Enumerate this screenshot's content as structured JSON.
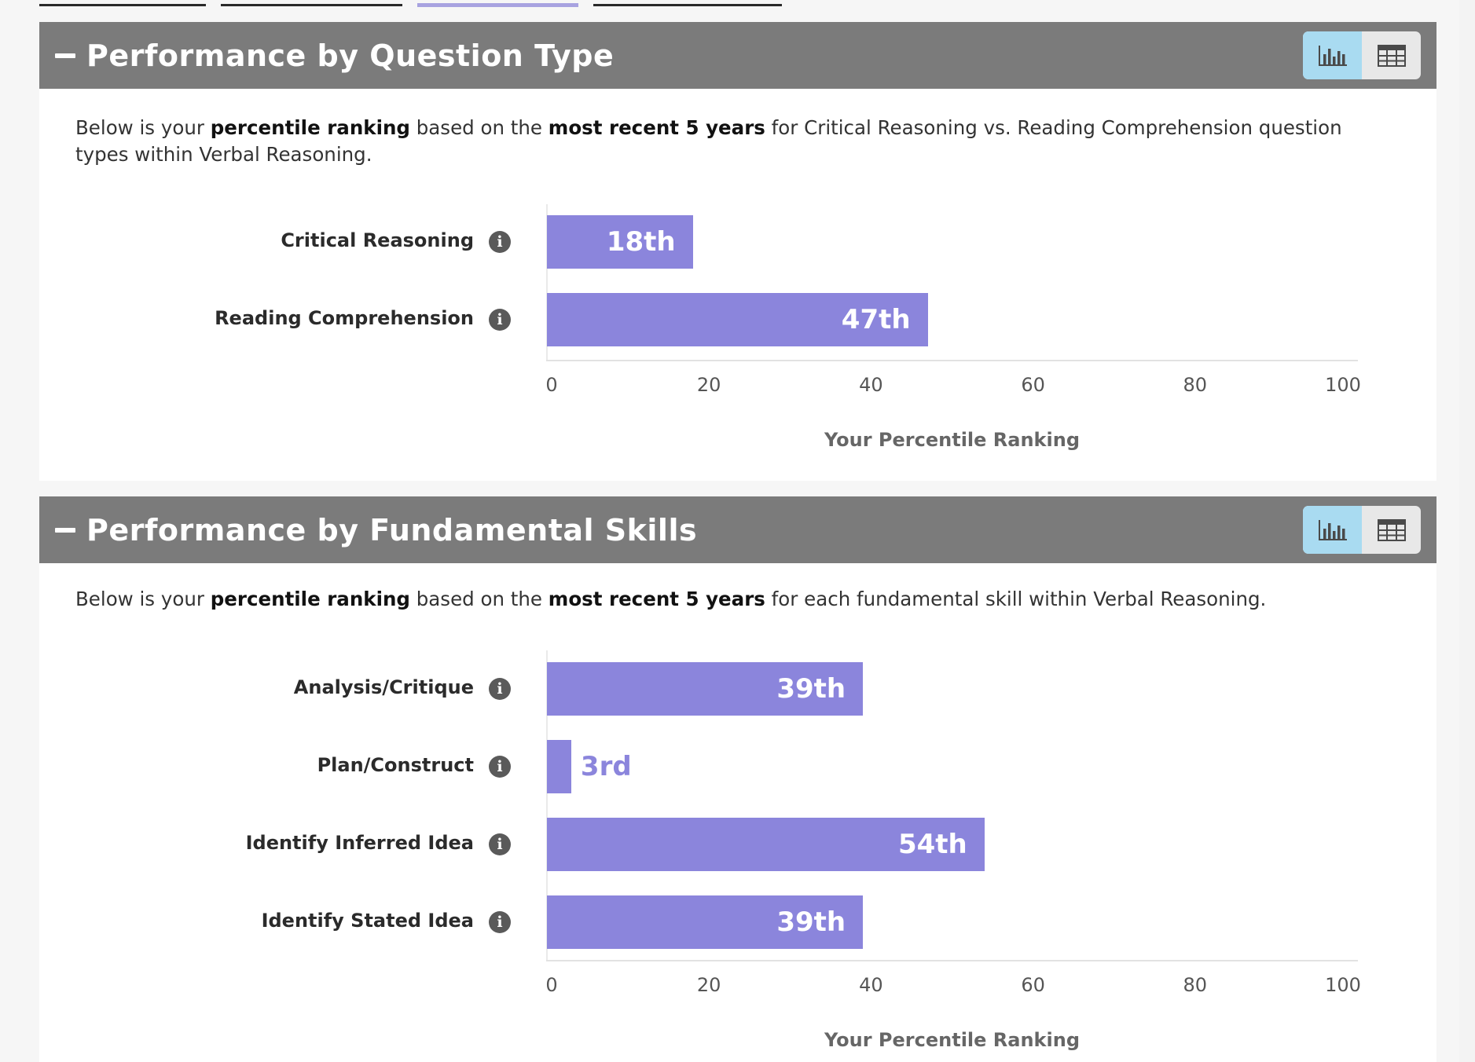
{
  "colors": {
    "header_bg": "#7b7b7b",
    "bar": "#8b85dc",
    "toggle_active": "#a9dbf1",
    "tab_active": "#a8a3e0"
  },
  "tabs": [
    {
      "active": false
    },
    {
      "active": false
    },
    {
      "active": true
    },
    {
      "active": false
    }
  ],
  "panels": [
    {
      "title": "Performance by Question Type",
      "description": [
        {
          "text": "Below is your ",
          "bold": false
        },
        {
          "text": "percentile ranking",
          "bold": true
        },
        {
          "text": " based on the ",
          "bold": false
        },
        {
          "text": "most recent 5 years",
          "bold": true
        },
        {
          "text": " for Critical Reasoning vs. Reading Comprehension question types within Verbal Reasoning.",
          "bold": false
        }
      ],
      "view_toggle": {
        "chart_icon": "bar-chart-icon",
        "table_icon": "table-icon",
        "active": "chart"
      },
      "chart_data": {
        "type": "bar",
        "orientation": "horizontal",
        "categories": [
          "Critical Reasoning",
          "Reading Comprehension"
        ],
        "values": [
          18,
          47
        ],
        "value_labels": [
          "18th",
          "47th"
        ],
        "xlim": [
          0,
          100
        ],
        "xticks": [
          "0",
          "20",
          "40",
          "60",
          "80",
          "100"
        ],
        "xlabel": "Your Percentile Ranking"
      }
    },
    {
      "title": "Performance by Fundamental Skills",
      "description": [
        {
          "text": "Below is your ",
          "bold": false
        },
        {
          "text": "percentile ranking",
          "bold": true
        },
        {
          "text": " based on the ",
          "bold": false
        },
        {
          "text": "most recent 5 years",
          "bold": true
        },
        {
          "text": " for each fundamental skill within Verbal Reasoning.",
          "bold": false
        }
      ],
      "view_toggle": {
        "chart_icon": "bar-chart-icon",
        "table_icon": "table-icon",
        "active": "chart"
      },
      "chart_data": {
        "type": "bar",
        "orientation": "horizontal",
        "categories": [
          "Analysis/Critique",
          "Plan/Construct",
          "Identify Inferred Idea",
          "Identify Stated Idea"
        ],
        "values": [
          39,
          3,
          54,
          39
        ],
        "value_labels": [
          "39th",
          "3rd",
          "54th",
          "39th"
        ],
        "xlim": [
          0,
          100
        ],
        "xticks": [
          "0",
          "20",
          "40",
          "60",
          "80",
          "100"
        ],
        "xlabel": "Your Percentile Ranking"
      }
    }
  ]
}
